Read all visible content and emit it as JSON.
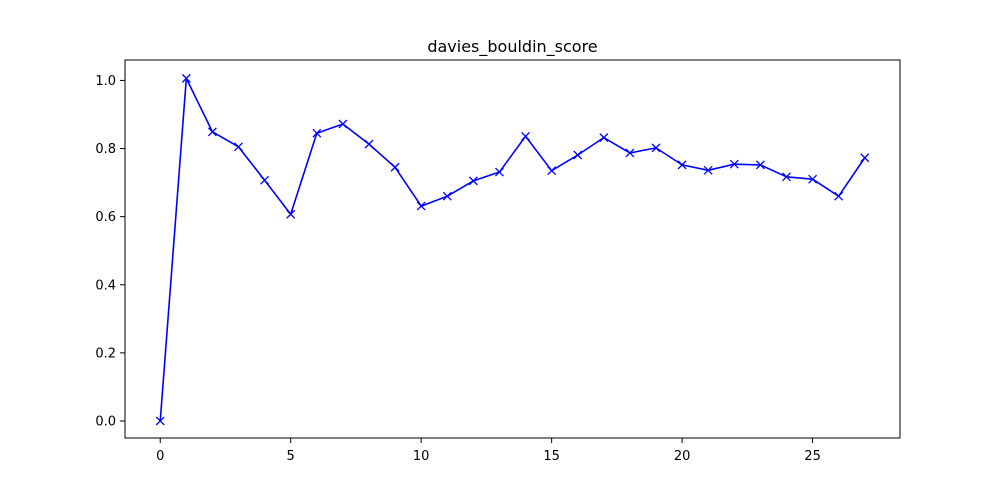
{
  "chart_data": {
    "type": "line",
    "title": "davies_bouldin_score",
    "xlabel": "",
    "ylabel": "",
    "xlim": [
      -1.35,
      28.35
    ],
    "ylim": [
      -0.05,
      1.06
    ],
    "x_ticks": [
      0,
      5,
      10,
      15,
      20,
      25
    ],
    "x_tick_labels": [
      "0",
      "5",
      "10",
      "15",
      "20",
      "25"
    ],
    "y_ticks": [
      0.0,
      0.2,
      0.4,
      0.6,
      0.8,
      1.0
    ],
    "y_tick_labels": [
      "0.0",
      "0.2",
      "0.4",
      "0.6",
      "0.8",
      "1.0"
    ],
    "grid": false,
    "legend": "none",
    "series": [
      {
        "color": "#0000ff",
        "marker": "x",
        "x": [
          0,
          1,
          2,
          3,
          4,
          5,
          6,
          7,
          8,
          9,
          10,
          11,
          12,
          13,
          14,
          15,
          16,
          17,
          18,
          19,
          20,
          21,
          22,
          23,
          24,
          25,
          26,
          27
        ],
        "y": [
          0.0,
          1.006,
          0.849,
          0.805,
          0.707,
          0.607,
          0.845,
          0.872,
          0.813,
          0.745,
          0.631,
          0.66,
          0.705,
          0.731,
          0.836,
          0.735,
          0.781,
          0.832,
          0.787,
          0.802,
          0.752,
          0.736,
          0.754,
          0.752,
          0.717,
          0.71,
          0.66,
          0.773
        ]
      }
    ]
  }
}
